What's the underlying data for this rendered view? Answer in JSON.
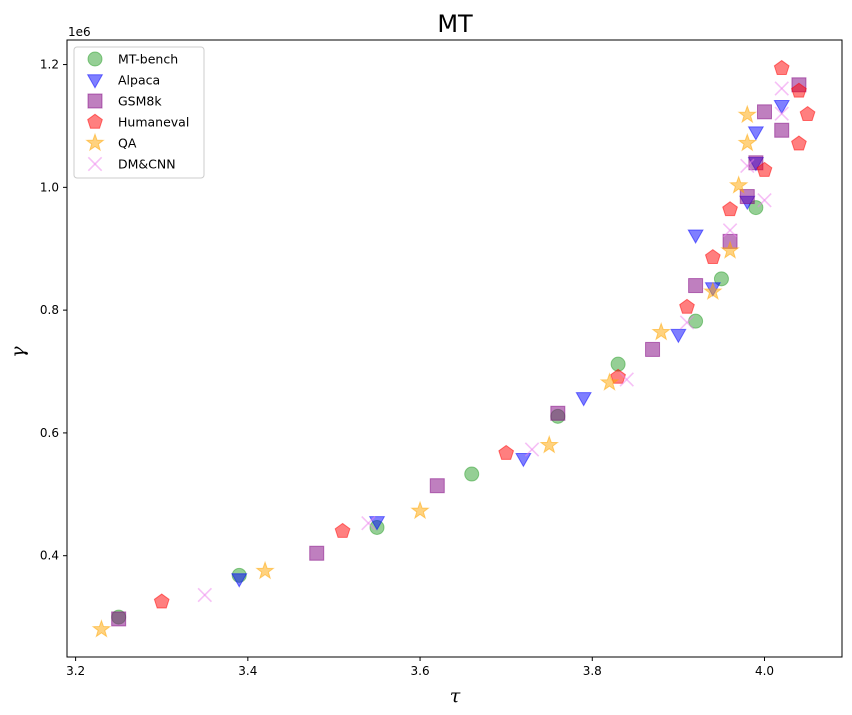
{
  "chart_data": {
    "type": "scatter",
    "title": "MT",
    "xlabel": "τ",
    "ylabel": "γ",
    "y_offset_label": "1e6",
    "xlim": [
      3.19,
      4.09
    ],
    "ylim": [
      235000,
      1240000
    ],
    "x_ticks": [
      3.2,
      3.4,
      3.6,
      3.8,
      4.0
    ],
    "x_tick_labels": [
      "3.2",
      "3.4",
      "3.6",
      "3.8",
      "4.0"
    ],
    "y_ticks": [
      400000,
      600000,
      800000,
      1000000,
      1200000
    ],
    "y_tick_labels": [
      "0.4",
      "0.6",
      "0.8",
      "1.0",
      "1.2"
    ],
    "grid": false,
    "legend_position": "upper-left",
    "series": [
      {
        "name": "MT-bench",
        "marker": "circle",
        "color": "#2ca02c",
        "edge": "#2ca02c",
        "points": [
          [
            3.25,
            300000
          ],
          [
            3.39,
            368000
          ],
          [
            3.55,
            446000
          ],
          [
            3.66,
            533000
          ],
          [
            3.76,
            627000
          ],
          [
            3.83,
            712000
          ],
          [
            3.92,
            782000
          ],
          [
            3.95,
            851000
          ],
          [
            3.99,
            967000
          ]
        ]
      },
      {
        "name": "Alpaca",
        "marker": "triangle-down",
        "color": "#0000ff",
        "edge": "#0000ff",
        "points": [
          [
            3.39,
            362000
          ],
          [
            3.55,
            455000
          ],
          [
            3.72,
            558000
          ],
          [
            3.79,
            657000
          ],
          [
            3.9,
            760000
          ],
          [
            3.94,
            836000
          ],
          [
            3.92,
            922000
          ],
          [
            3.98,
            977000
          ],
          [
            3.99,
            1040000
          ],
          [
            3.99,
            1090000
          ],
          [
            4.02,
            1133000
          ]
        ]
      },
      {
        "name": "GSM8k",
        "marker": "square",
        "color": "#800080",
        "edge": "#800080",
        "points": [
          [
            3.25,
            297000
          ],
          [
            3.48,
            404000
          ],
          [
            3.62,
            514000
          ],
          [
            3.76,
            632000
          ],
          [
            3.87,
            736000
          ],
          [
            3.92,
            840000
          ],
          [
            3.96,
            912000
          ],
          [
            3.98,
            985000
          ],
          [
            3.99,
            1040000
          ],
          [
            4.0,
            1123000
          ],
          [
            4.02,
            1093000
          ],
          [
            4.04,
            1167000
          ]
        ]
      },
      {
        "name": "Humaneval",
        "marker": "pentagon",
        "color": "#ff0000",
        "edge": "#ff0000",
        "points": [
          [
            3.3,
            325000
          ],
          [
            3.51,
            440000
          ],
          [
            3.7,
            567000
          ],
          [
            3.83,
            691000
          ],
          [
            3.91,
            805000
          ],
          [
            3.94,
            886000
          ],
          [
            3.96,
            964000
          ],
          [
            4.0,
            1028000
          ],
          [
            4.04,
            1071000
          ],
          [
            4.05,
            1119000
          ],
          [
            4.04,
            1157000
          ],
          [
            4.02,
            1194000
          ]
        ]
      },
      {
        "name": "QA",
        "marker": "star",
        "color": "#ffa500",
        "edge": "#ffa500",
        "points": [
          [
            3.23,
            280000
          ],
          [
            3.42,
            375000
          ],
          [
            3.6,
            473000
          ],
          [
            3.75,
            580000
          ],
          [
            3.82,
            682000
          ],
          [
            3.88,
            764000
          ],
          [
            3.94,
            830000
          ],
          [
            3.96,
            897000
          ],
          [
            3.97,
            1003000
          ],
          [
            3.98,
            1072000
          ],
          [
            3.98,
            1118000
          ]
        ]
      },
      {
        "name": "DM&CNN",
        "marker": "x",
        "color": "#ee82ee",
        "edge": "#ee82ee",
        "points": [
          [
            3.35,
            336000
          ],
          [
            3.54,
            453000
          ],
          [
            3.73,
            573000
          ],
          [
            3.84,
            687000
          ],
          [
            3.91,
            780000
          ],
          [
            3.96,
            930000
          ],
          [
            3.98,
            1035000
          ],
          [
            4.0,
            979000
          ],
          [
            4.02,
            1120000
          ],
          [
            4.02,
            1161000
          ]
        ]
      }
    ]
  }
}
